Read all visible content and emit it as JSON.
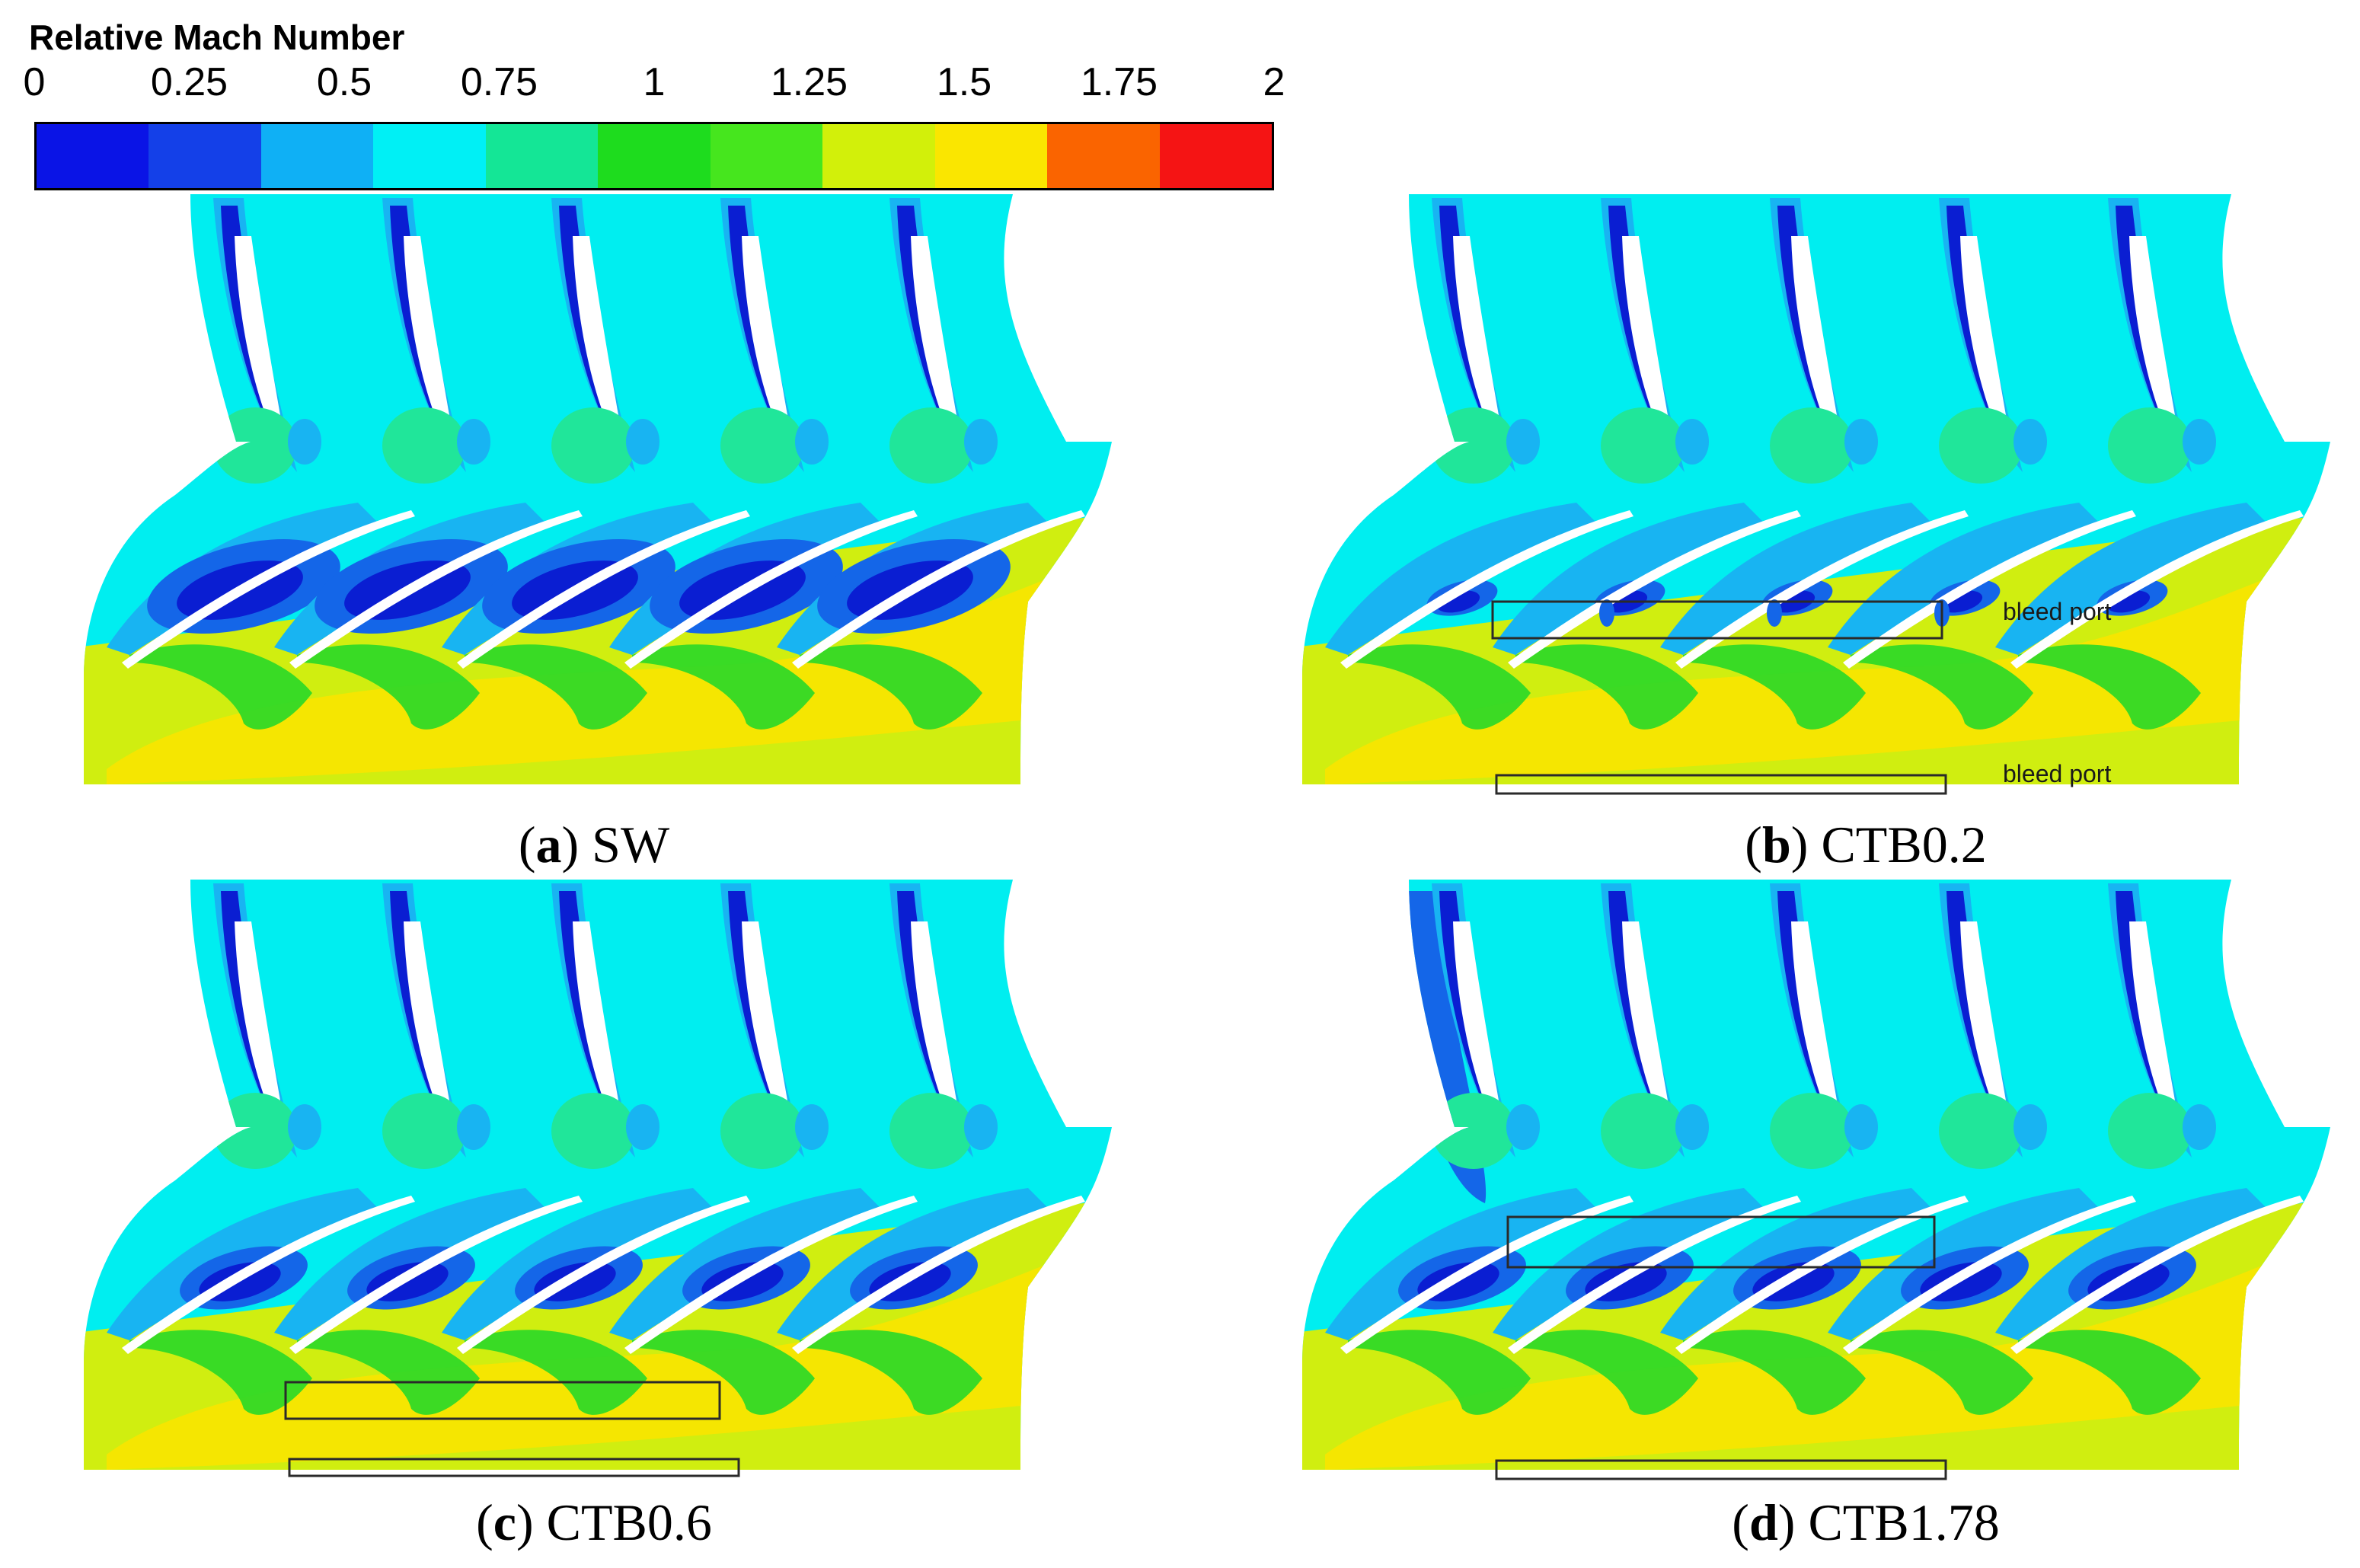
{
  "legend": {
    "title": "Relative Mach Number",
    "ticks": [
      "0",
      "0.25",
      "0.5",
      "0.75",
      "1",
      "1.25",
      "1.5",
      "1.75",
      "2"
    ],
    "colors": [
      "#0a14e6",
      "#1440e8",
      "#0fb0f5",
      "#00f0f5",
      "#14e696",
      "#1edc1e",
      "#46e61e",
      "#d2f00a",
      "#fae600",
      "#fa6400",
      "#f51414"
    ]
  },
  "field_colors": {
    "freestream": "#00eef0",
    "light_blue": "#18b4f2",
    "mid_blue": "#1466e8",
    "deep_blue": "#0a1ed2",
    "green": "#20e69a",
    "bright_green": "#28d828",
    "yellow_green": "#d0ee10",
    "yellow": "#f8e400",
    "blade": "#ffffff",
    "box": "#2a2a2a"
  },
  "panels": [
    {
      "letter": "a",
      "label": "SW",
      "boxes": []
    },
    {
      "letter": "b",
      "label": "CTB0.2",
      "boxes": [
        "mid",
        "bottom"
      ],
      "annotations": [
        "bleed port",
        "bleed port"
      ]
    },
    {
      "letter": "c",
      "label": "CTB0.6",
      "boxes": [
        "upper",
        "bottom"
      ]
    },
    {
      "letter": "d",
      "label": "CTB1.78",
      "boxes": [
        "top",
        "bottom"
      ]
    }
  ]
}
